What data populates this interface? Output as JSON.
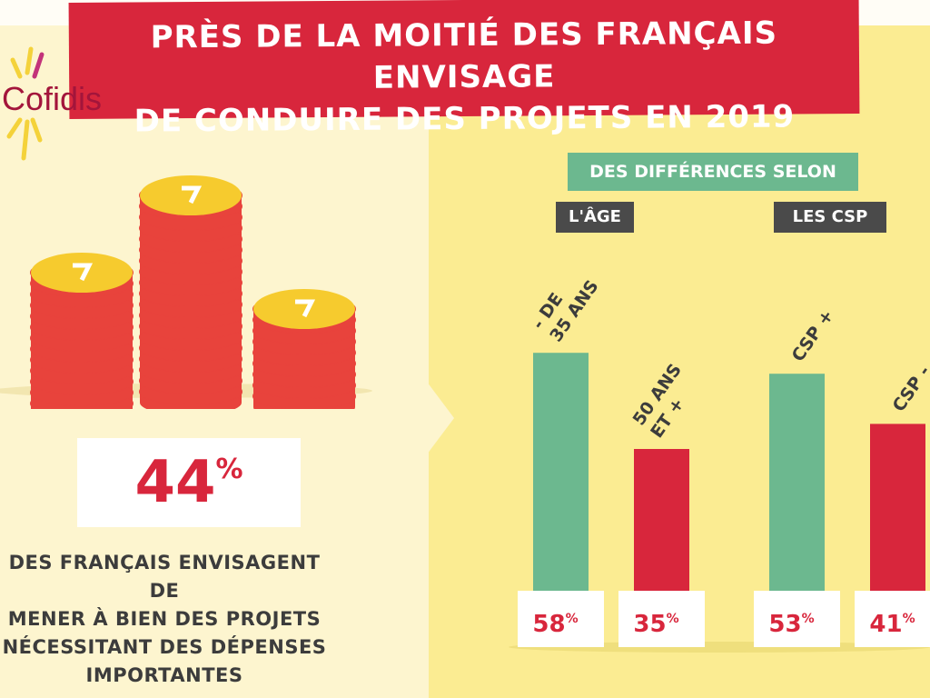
{
  "title": {
    "line1": "PRÈS DE LA MOITIÉ DES FRANÇAIS ENVISAGE",
    "line2": "DE CONDUIRE DES PROJETS EN 2019"
  },
  "logo": {
    "text": "Cofidis"
  },
  "headline": {
    "value": "44",
    "unit": "%",
    "text": [
      "DES FRANÇAIS ENVISAGENT DE",
      "MENER À BIEN DES PROJETS",
      "NÉCESSITANT DES DÉPENSES",
      "IMPORTANTES"
    ]
  },
  "colors": {
    "red": "#d8263c",
    "green": "#6cb88f",
    "dark": "#4a4a4a"
  },
  "chart_data": {
    "type": "bar",
    "title": "DES DIFFÉRENCES SELON",
    "groups": [
      {
        "label": "L'ÂGE",
        "categories": [
          "- DE 35 ANS",
          "50 ANS ET +"
        ],
        "values": [
          58,
          35
        ],
        "colors": [
          "#6cb88f",
          "#d8263c"
        ]
      },
      {
        "label": "LES CSP",
        "categories": [
          "CSP +",
          "CSP -"
        ],
        "values": [
          53,
          41
        ],
        "colors": [
          "#6cb88f",
          "#d8263c"
        ]
      }
    ],
    "unit": "%",
    "category_label_lines": [
      [
        "- DE",
        "35 ANS"
      ],
      [
        "50 ANS",
        "ET +"
      ],
      [
        "CSP +"
      ],
      [
        "CSP -"
      ]
    ]
  }
}
